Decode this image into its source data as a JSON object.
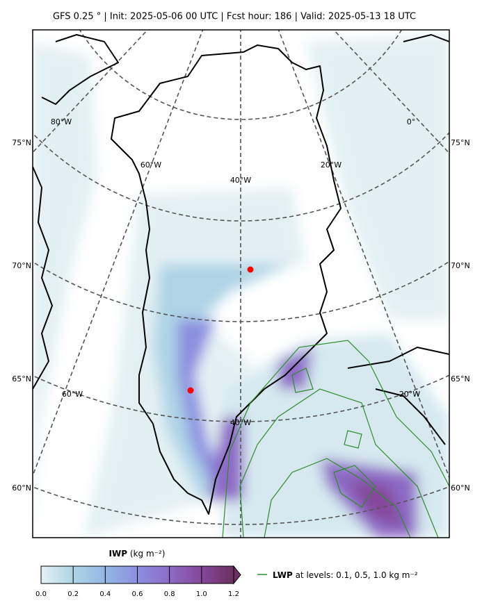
{
  "header": {
    "title": "GFS 0.25 °  |  Init: 2025-05-06 00 UTC  |  Fcst hour: 186  |  Valid: 2025-05-13 18 UTC"
  },
  "map": {
    "lat_labels_left": [
      "75°N",
      "70°N",
      "65°N",
      "60°N"
    ],
    "lat_labels_right": [
      "75°N",
      "70°N",
      "65°N",
      "60°N"
    ],
    "lon_labels": [
      "80°W",
      "60°W",
      "40°W",
      "20°W",
      "0°",
      "60°W",
      "20°W",
      "40°W"
    ]
  },
  "colorbar": {
    "label_name": "IWP",
    "label_units": "(kg m⁻²)",
    "ticks": [
      {
        "value": 0,
        "label": "0.0"
      },
      0.2,
      0.4,
      0.6,
      0.8,
      {
        "value": 1,
        "label": "1.0"
      },
      1.2
    ],
    "lim": [
      0,
      1.2
    ],
    "colors": [
      "#e3f0f3",
      "#aed4e6",
      "#93b7e3",
      "#8b8fdf",
      "#8d6bc6",
      "#85479a",
      "#6b3060"
    ]
  },
  "legend": {
    "name": "LWP",
    "text": "at levels: 0.1, 0.5, 1.0  kg m⁻²",
    "color": "#2e8b2e"
  }
}
